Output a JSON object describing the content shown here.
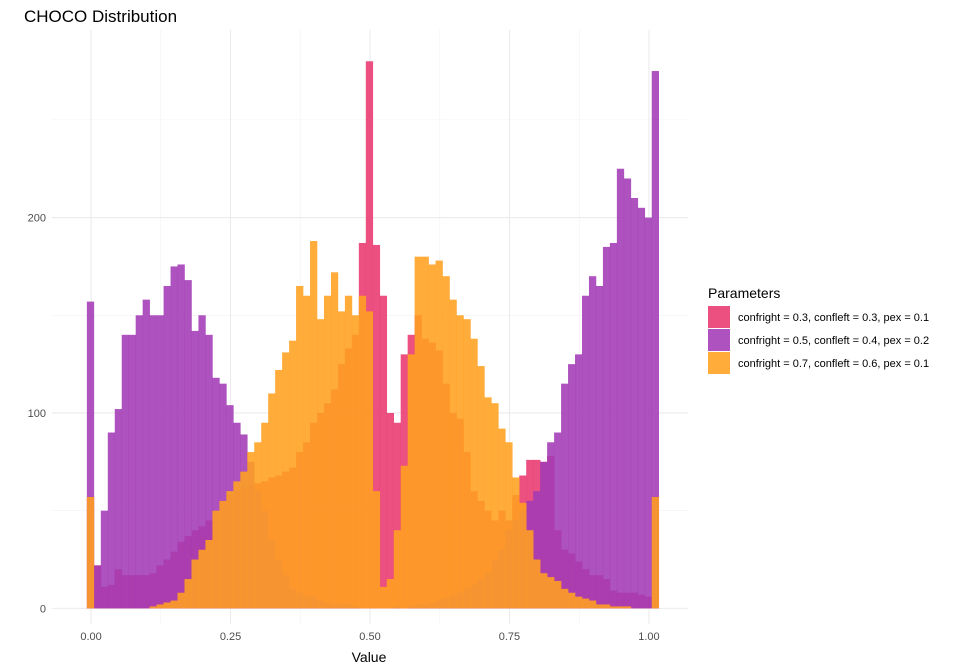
{
  "chart_data": {
    "type": "bar",
    "title": "CHOCO Distribution",
    "xlabel": "Value",
    "ylabel": "",
    "xlim": [
      -0.07,
      1.07
    ],
    "ylim": [
      -8,
      296
    ],
    "x_ticks": [
      0,
      0.25,
      0.5,
      0.75,
      1.0
    ],
    "x_tick_labels": [
      "0.00",
      "0.25",
      "0.50",
      "0.75",
      "1.00"
    ],
    "y_ticks": [
      0,
      100,
      200
    ],
    "y_tick_labels": [
      "0",
      "100",
      "200"
    ],
    "grid": true,
    "bin_start": -0.0075,
    "bin_width": 0.0125,
    "legend": {
      "title": "Parameters",
      "position": "right"
    },
    "series": [
      {
        "name": "confright = 0.3, confleft = 0.3, pex = 0.1",
        "color": "#e8386f",
        "values": [
          57,
          22,
          11,
          12,
          20,
          17,
          17,
          17,
          17,
          18,
          22,
          25,
          29,
          34,
          37,
          40,
          42,
          45,
          50,
          55,
          58,
          60,
          62,
          63,
          64,
          65,
          67,
          68,
          70,
          72,
          80,
          85,
          95,
          100,
          105,
          112,
          125,
          133,
          140,
          187,
          280,
          186,
          160,
          100,
          95,
          130,
          140,
          150,
          138,
          136,
          132,
          115,
          100,
          97,
          80,
          60,
          55,
          50,
          45,
          50,
          45,
          58,
          68,
          76,
          76,
          75,
          78,
          40,
          30,
          28,
          24,
          20,
          17,
          17,
          15,
          9,
          8,
          8,
          8,
          7,
          6,
          57
        ]
      },
      {
        "name": "confright = 0.5, confleft = 0.4, pex = 0.2",
        "color": "#a23ab5",
        "values": [
          157,
          22,
          50,
          90,
          102,
          140,
          140,
          150,
          158,
          150,
          150,
          165,
          175,
          176,
          168,
          142,
          150,
          140,
          118,
          115,
          104,
          95,
          89,
          75,
          60,
          50,
          35,
          25,
          17,
          10,
          8,
          6,
          6,
          4,
          3,
          2,
          2,
          2,
          1,
          0,
          0,
          0,
          0,
          0,
          1,
          0,
          1,
          2,
          2,
          3,
          4,
          5,
          6,
          8,
          10,
          12,
          15,
          18,
          25,
          30,
          40,
          45,
          50,
          55,
          60,
          75,
          85,
          90,
          115,
          125,
          130,
          160,
          170,
          165,
          185,
          187,
          225,
          220,
          210,
          205,
          200,
          275
        ]
      },
      {
        "name": "confright = 0.7, confleft = 0.6, pex = 0.1",
        "color": "#ffa020",
        "values": [
          57,
          0,
          0,
          0,
          0,
          0,
          0,
          0,
          0,
          1,
          2,
          3,
          4,
          8,
          15,
          25,
          30,
          35,
          50,
          55,
          60,
          65,
          70,
          80,
          85,
          95,
          110,
          122,
          131,
          137,
          165,
          160,
          188,
          148,
          160,
          172,
          152,
          160,
          150,
          160,
          152,
          60,
          11,
          15,
          40,
          73,
          130,
          180,
          180,
          176,
          178,
          170,
          158,
          150,
          148,
          138,
          124,
          108,
          105,
          92,
          85,
          67,
          54,
          40,
          25,
          18,
          16,
          14,
          10,
          8,
          6,
          5,
          4,
          2,
          2,
          1,
          1,
          1,
          0,
          0,
          0,
          57
        ]
      }
    ]
  }
}
